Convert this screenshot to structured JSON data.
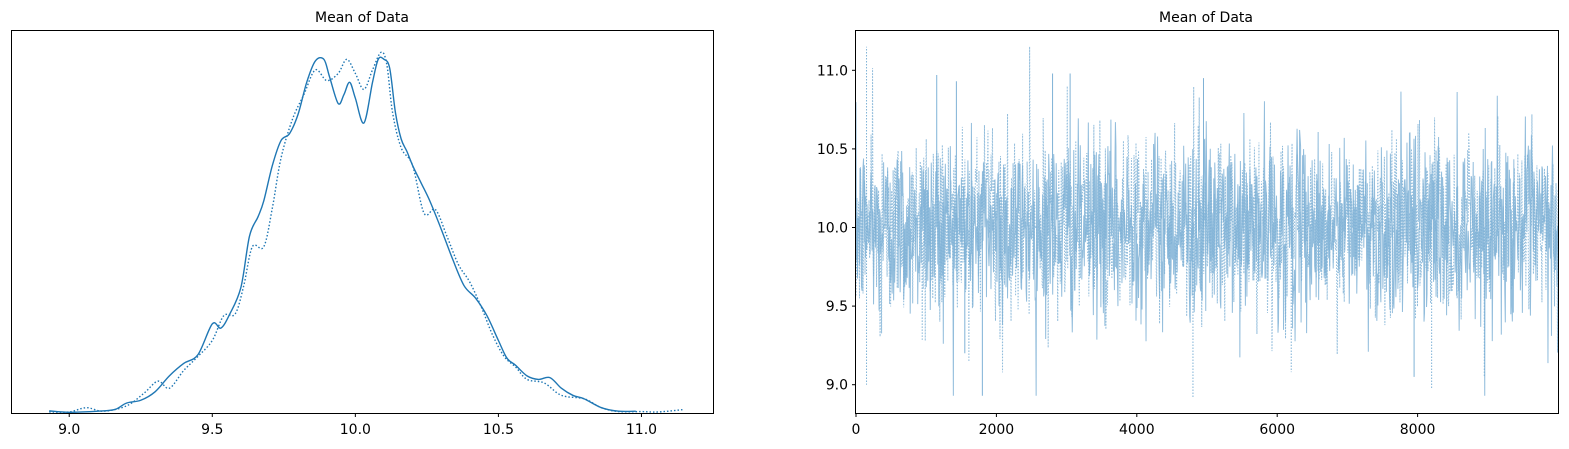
{
  "figure": {
    "panels": 2
  },
  "colors": {
    "series": "#1f77b4",
    "trace": "#7fb2d6",
    "axis": "#000000"
  },
  "chart_data": [
    {
      "type": "line",
      "title": "Mean of Data",
      "xlabel": "",
      "ylabel": "",
      "xlim": [
        8.8,
        11.25
      ],
      "ylim": [
        0,
        1.08
      ],
      "grid": false,
      "x_ticks": [
        9.0,
        9.5,
        10.0,
        10.5,
        11.0
      ],
      "x_tick_labels": [
        "9.0",
        "9.5",
        "10.0",
        "10.5",
        "11.0"
      ],
      "y_ticks_visible": false,
      "series": [
        {
          "style": "solid",
          "x": [
            8.93,
            9.0,
            9.1,
            9.16,
            9.2,
            9.25,
            9.3,
            9.35,
            9.4,
            9.45,
            9.5,
            9.53,
            9.56,
            9.6,
            9.63,
            9.66,
            9.68,
            9.71,
            9.74,
            9.77,
            9.8,
            9.83,
            9.86,
            9.89,
            9.91,
            9.94,
            9.96,
            9.98,
            10.0,
            10.03,
            10.06,
            10.08,
            10.1,
            10.12,
            10.14,
            10.16,
            10.18,
            10.2,
            10.23,
            10.26,
            10.3,
            10.34,
            10.38,
            10.42,
            10.46,
            10.5,
            10.53,
            10.56,
            10.6,
            10.64,
            10.68,
            10.72,
            10.76,
            10.8,
            10.86,
            10.92,
            10.98
          ],
          "y": [
            0.006,
            0.002,
            0.005,
            0.01,
            0.028,
            0.036,
            0.06,
            0.105,
            0.14,
            0.165,
            0.252,
            0.24,
            0.278,
            0.355,
            0.5,
            0.555,
            0.6,
            0.7,
            0.77,
            0.79,
            0.845,
            0.935,
            0.995,
            1.0,
            0.95,
            0.875,
            0.9,
            0.935,
            0.89,
            0.82,
            0.935,
            1.0,
            1.0,
            0.975,
            0.85,
            0.775,
            0.74,
            0.7,
            0.65,
            0.6,
            0.52,
            0.435,
            0.36,
            0.325,
            0.275,
            0.205,
            0.155,
            0.135,
            0.105,
            0.095,
            0.1,
            0.07,
            0.05,
            0.04,
            0.015,
            0.005,
            0.005
          ]
        },
        {
          "style": "dotted",
          "x": [
            8.93,
            9.0,
            9.06,
            9.12,
            9.2,
            9.26,
            9.31,
            9.35,
            9.4,
            9.45,
            9.5,
            9.54,
            9.58,
            9.61,
            9.64,
            9.68,
            9.71,
            9.74,
            9.78,
            9.82,
            9.86,
            9.9,
            9.94,
            9.97,
            10.0,
            10.03,
            10.06,
            10.09,
            10.11,
            10.13,
            10.16,
            10.2,
            10.24,
            10.28,
            10.32,
            10.36,
            10.4,
            10.44,
            10.48,
            10.52,
            10.56,
            10.6,
            10.66,
            10.72,
            10.8,
            10.86,
            10.92,
            11.0,
            11.06,
            11.15
          ],
          "y": [
            0.003,
            0.003,
            0.015,
            0.005,
            0.02,
            0.055,
            0.09,
            0.07,
            0.12,
            0.16,
            0.205,
            0.275,
            0.28,
            0.36,
            0.47,
            0.47,
            0.58,
            0.72,
            0.83,
            0.9,
            0.97,
            0.94,
            0.96,
            1.0,
            0.96,
            0.915,
            0.97,
            1.02,
            0.985,
            0.85,
            0.75,
            0.7,
            0.565,
            0.575,
            0.5,
            0.42,
            0.37,
            0.3,
            0.22,
            0.16,
            0.13,
            0.095,
            0.085,
            0.05,
            0.04,
            0.015,
            0.004,
            0.004,
            0.003,
            0.01
          ]
        }
      ]
    },
    {
      "type": "line",
      "title": "Mean of Data",
      "xlabel": "",
      "ylabel": "",
      "xlim": [
        0,
        10000
      ],
      "ylim": [
        8.82,
        11.25
      ],
      "grid": false,
      "x_ticks": [
        0,
        2000,
        4000,
        6000,
        8000
      ],
      "x_tick_labels": [
        "0",
        "2000",
        "4000",
        "6000",
        "8000"
      ],
      "y_ticks": [
        9.0,
        9.5,
        10.0,
        10.5,
        11.0
      ],
      "y_tick_labels": [
        "9.0",
        "9.5",
        "10.0",
        "10.5",
        "11.0"
      ],
      "trace_summary": {
        "n_draws": 10000,
        "mean": 10.0,
        "sd": 0.25,
        "chains": 2
      },
      "series": [
        {
          "style": "solid",
          "x_start": 0,
          "x_end": 10000,
          "center": 10.0,
          "sd": 0.25,
          "max": 11.0,
          "min": 8.93
        },
        {
          "style": "dotted",
          "x_start": 0,
          "x_end": 10000,
          "center": 10.0,
          "sd": 0.25,
          "max": 11.15,
          "min": 8.92
        }
      ]
    }
  ]
}
